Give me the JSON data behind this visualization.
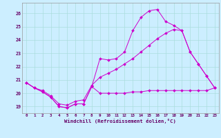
{
  "xlabel": "Windchill (Refroidissement éolien,°C)",
  "background_color": "#cceeff",
  "grid_color": "#aadddd",
  "line_color": "#cc00cc",
  "dark_line_color": "#880088",
  "x_ticks": [
    0,
    1,
    2,
    3,
    4,
    5,
    6,
    7,
    8,
    9,
    10,
    11,
    12,
    13,
    14,
    15,
    16,
    17,
    18,
    19,
    20,
    21,
    22,
    23
  ],
  "ylim": [
    18.5,
    26.8
  ],
  "yticks": [
    19,
    20,
    21,
    22,
    23,
    24,
    25,
    26
  ],
  "line1_y": [
    20.8,
    20.4,
    20.1,
    19.7,
    19.0,
    18.9,
    19.2,
    19.2,
    20.5,
    20.0,
    20.0,
    20.0,
    20.0,
    20.1,
    20.1,
    20.2,
    20.2,
    20.2,
    20.2,
    20.2,
    20.2,
    20.2,
    20.2,
    20.4
  ],
  "line2_y": [
    20.8,
    20.4,
    20.1,
    19.7,
    19.0,
    18.9,
    19.2,
    19.2,
    20.5,
    22.6,
    22.5,
    22.6,
    23.1,
    24.7,
    25.7,
    26.2,
    26.3,
    25.4,
    25.1,
    24.7,
    23.1,
    22.2,
    21.3,
    20.4
  ],
  "line3_y": [
    20.8,
    20.4,
    20.2,
    19.8,
    19.2,
    19.1,
    19.4,
    19.5,
    20.6,
    21.2,
    21.5,
    21.8,
    22.2,
    22.6,
    23.1,
    23.6,
    24.1,
    24.5,
    24.8,
    24.7,
    23.1,
    22.2,
    21.3,
    20.4
  ]
}
